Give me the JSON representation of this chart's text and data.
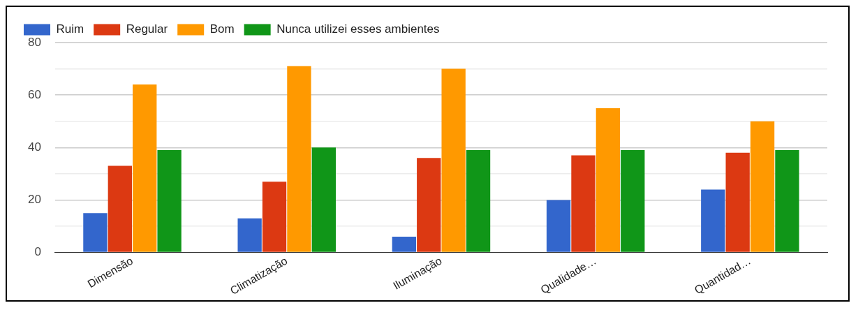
{
  "chart_data": {
    "type": "bar",
    "categories": [
      "Dimensão",
      "Climatização",
      "Iluminação",
      "Qualidade…",
      "Quantidad…"
    ],
    "series": [
      {
        "name": "Ruim",
        "color": "#3366cc",
        "values": [
          15,
          13,
          6,
          20,
          24
        ]
      },
      {
        "name": "Regular",
        "color": "#dc3912",
        "values": [
          33,
          27,
          36,
          37,
          38
        ]
      },
      {
        "name": "Bom",
        "color": "#ff9900",
        "values": [
          64,
          71,
          70,
          55,
          50
        ]
      },
      {
        "name": "Nunca utilizei esses ambientes",
        "color": "#109618",
        "values": [
          39,
          40,
          39,
          39,
          39
        ]
      }
    ],
    "ylim": [
      0,
      80
    ],
    "yticks": [
      0,
      {
        "value": 10,
        "label": null
      },
      20,
      {
        "value": 30,
        "label": null
      },
      40,
      {
        "value": 50,
        "label": null
      },
      60,
      {
        "value": 70,
        "label": null
      },
      80
    ],
    "grid": "y",
    "legend": "top left"
  }
}
